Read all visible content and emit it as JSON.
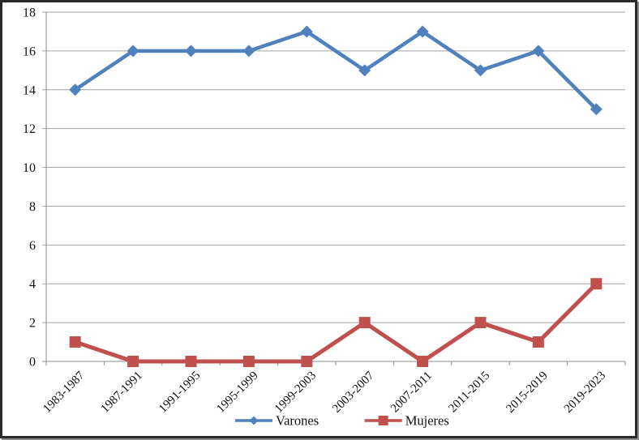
{
  "chart_data": {
    "type": "line",
    "title": "",
    "xlabel": "",
    "ylabel": "",
    "categories": [
      "1983-1987",
      "1987-1991",
      "1991-1995",
      "1995-1999",
      "1999-2003",
      "2003-2007",
      "2007-2011",
      "2011-2015",
      "2015-2019",
      "2019-2023"
    ],
    "series": [
      {
        "name": "Varones",
        "color": "#4F81BD",
        "marker": "diamond",
        "values": [
          14,
          16,
          16,
          16,
          17,
          15,
          17,
          15,
          16,
          13
        ]
      },
      {
        "name": "Mujeres",
        "color": "#C0504D",
        "marker": "square",
        "values": [
          1,
          0,
          0,
          0,
          0,
          2,
          0,
          2,
          1,
          4
        ]
      }
    ],
    "ylim": [
      0,
      18
    ],
    "y_ticks": [
      0,
      2,
      4,
      6,
      8,
      10,
      12,
      14,
      16,
      18
    ],
    "grid": true,
    "legend_position": "bottom-center",
    "colors": {
      "gridline": "#A3A3A3",
      "axis": "#8C8C8C",
      "text": "#111111",
      "background": "#FFFFFF",
      "frame_border": "#2A2A2A",
      "frame_shadow": "#8C8C8C"
    }
  }
}
